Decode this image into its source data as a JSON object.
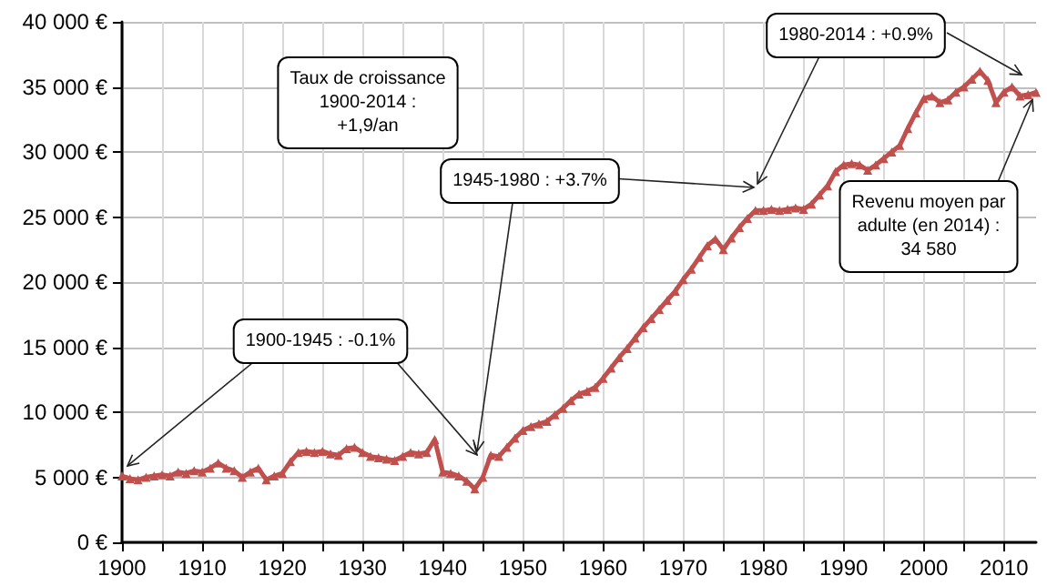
{
  "chart_data": {
    "type": "line",
    "x": [
      1900,
      1901,
      1902,
      1903,
      1904,
      1905,
      1906,
      1907,
      1908,
      1909,
      1910,
      1911,
      1912,
      1913,
      1914,
      1915,
      1916,
      1917,
      1918,
      1919,
      1920,
      1921,
      1922,
      1923,
      1924,
      1925,
      1926,
      1927,
      1928,
      1929,
      1930,
      1931,
      1932,
      1933,
      1934,
      1935,
      1936,
      1937,
      1938,
      1939,
      1940,
      1941,
      1942,
      1943,
      1944,
      1945,
      1946,
      1947,
      1948,
      1949,
      1950,
      1951,
      1952,
      1953,
      1954,
      1955,
      1956,
      1957,
      1958,
      1959,
      1960,
      1961,
      1962,
      1963,
      1964,
      1965,
      1966,
      1967,
      1968,
      1969,
      1970,
      1971,
      1972,
      1973,
      1974,
      1975,
      1976,
      1977,
      1978,
      1979,
      1980,
      1981,
      1982,
      1983,
      1984,
      1985,
      1986,
      1987,
      1988,
      1989,
      1990,
      1991,
      1992,
      1993,
      1994,
      1995,
      1996,
      1997,
      1998,
      1999,
      2000,
      2001,
      2002,
      2003,
      2004,
      2005,
      2006,
      2007,
      2008,
      2009,
      2010,
      2011,
      2012,
      2013,
      2014
    ],
    "series": [
      {
        "color": "#c0504d",
        "values": [
          5100,
          4900,
          4800,
          5000,
          5100,
          5200,
          5100,
          5400,
          5300,
          5500,
          5400,
          5700,
          6100,
          5700,
          5500,
          5000,
          5400,
          5700,
          4800,
          5100,
          5300,
          6200,
          6900,
          7000,
          6900,
          7000,
          6800,
          6700,
          7200,
          7300,
          6900,
          6600,
          6500,
          6400,
          6300,
          6600,
          6900,
          6800,
          6900,
          7900,
          5400,
          5300,
          5100,
          4700,
          4100,
          5000,
          6700,
          6600,
          7300,
          8000,
          8600,
          8900,
          9100,
          9300,
          9800,
          10300,
          10900,
          11400,
          11600,
          11900,
          12600,
          13400,
          14200,
          14900,
          15700,
          16500,
          17200,
          17900,
          18600,
          19300,
          20200,
          21000,
          21900,
          22800,
          23300,
          22500,
          23400,
          24200,
          24900,
          25500,
          25500,
          25600,
          25500,
          25600,
          25700,
          25600,
          26000,
          26700,
          27400,
          28500,
          29000,
          29100,
          29000,
          28600,
          29000,
          29500,
          30000,
          30500,
          31800,
          33000,
          34100,
          34300,
          33800,
          34000,
          34600,
          35000,
          35600,
          36200,
          35500,
          33800,
          34600,
          35000,
          34300,
          34400,
          34580
        ]
      }
    ],
    "xlim": [
      1900,
      2014
    ],
    "xticks": [
      1900,
      {
        "value": 1905,
        "label": null
      },
      1910,
      {
        "value": 1915,
        "label": null
      },
      1920,
      {
        "value": 1925,
        "label": null
      },
      1930,
      {
        "value": 1935,
        "label": null
      },
      1940,
      {
        "value": 1945,
        "label": null
      },
      1950,
      {
        "value": 1955,
        "label": null
      },
      1960,
      {
        "value": 1965,
        "label": null
      },
      1970,
      {
        "value": 1975,
        "label": null
      },
      1980,
      {
        "value": 1985,
        "label": null
      },
      1990,
      {
        "value": 1995,
        "label": null
      },
      2000,
      {
        "value": 2005,
        "label": null
      },
      2010
    ],
    "ylim": [
      0,
      40000
    ],
    "yticks": [
      {
        "value": 0,
        "label": "0 €"
      },
      {
        "value": 5000,
        "label": "5 000 €"
      },
      {
        "value": 10000,
        "label": "10 000 €"
      },
      {
        "value": 15000,
        "label": "15 000 €"
      },
      {
        "value": 20000,
        "label": "20 000 €"
      },
      {
        "value": 25000,
        "label": "25 000 €"
      },
      {
        "value": 30000,
        "label": "30 000 €"
      },
      {
        "value": 35000,
        "label": "35 000 €"
      },
      {
        "value": 40000,
        "label": "40 000 €"
      }
    ],
    "grid": true,
    "marker": "triangle",
    "line_style": "solid",
    "annotations": [
      "Taux de croissance\n1900-2014 :\n+1,9/an",
      "1900-1945 : -0.1%",
      "1945-1980 : +3.7%",
      "1980-2014 : +0.9%",
      {
        "text": "Revenu moyen par\nadulte (en 2014) :\n34 580",
        "x": 2014,
        "y": 34580
      }
    ]
  }
}
